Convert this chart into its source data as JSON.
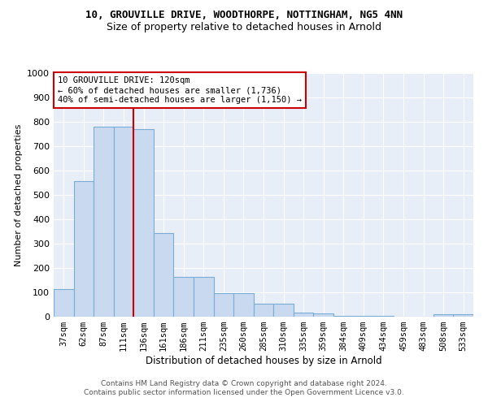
{
  "title1": "10, GROUVILLE DRIVE, WOODTHORPE, NOTTINGHAM, NG5 4NN",
  "title2": "Size of property relative to detached houses in Arnold",
  "xlabel": "Distribution of detached houses by size in Arnold",
  "ylabel": "Number of detached properties",
  "categories": [
    "37sqm",
    "62sqm",
    "87sqm",
    "111sqm",
    "136sqm",
    "161sqm",
    "186sqm",
    "211sqm",
    "235sqm",
    "260sqm",
    "285sqm",
    "310sqm",
    "335sqm",
    "359sqm",
    "384sqm",
    "409sqm",
    "434sqm",
    "459sqm",
    "483sqm",
    "508sqm",
    "533sqm"
  ],
  "values": [
    113,
    558,
    780,
    780,
    770,
    343,
    165,
    165,
    98,
    98,
    52,
    52,
    18,
    13,
    5,
    5,
    2,
    0,
    0,
    10,
    10
  ],
  "bar_color": "#c8d9f0",
  "bar_edge_color": "#7aadd4",
  "annotation_line1": "10 GROUVILLE DRIVE: 120sqm",
  "annotation_line2": "← 60% of detached houses are smaller (1,736)",
  "annotation_line3": "40% of semi-detached houses are larger (1,150) →",
  "annotation_box_color": "#ffffff",
  "annotation_box_edge": "#cc0000",
  "vline_color": "#cc0000",
  "vline_x": 3.5,
  "footer1": "Contains HM Land Registry data © Crown copyright and database right 2024.",
  "footer2": "Contains public sector information licensed under the Open Government Licence v3.0.",
  "bg_color": "#e8eef8",
  "ylim": [
    0,
    1000
  ],
  "yticks": [
    0,
    100,
    200,
    300,
    400,
    500,
    600,
    700,
    800,
    900,
    1000
  ]
}
